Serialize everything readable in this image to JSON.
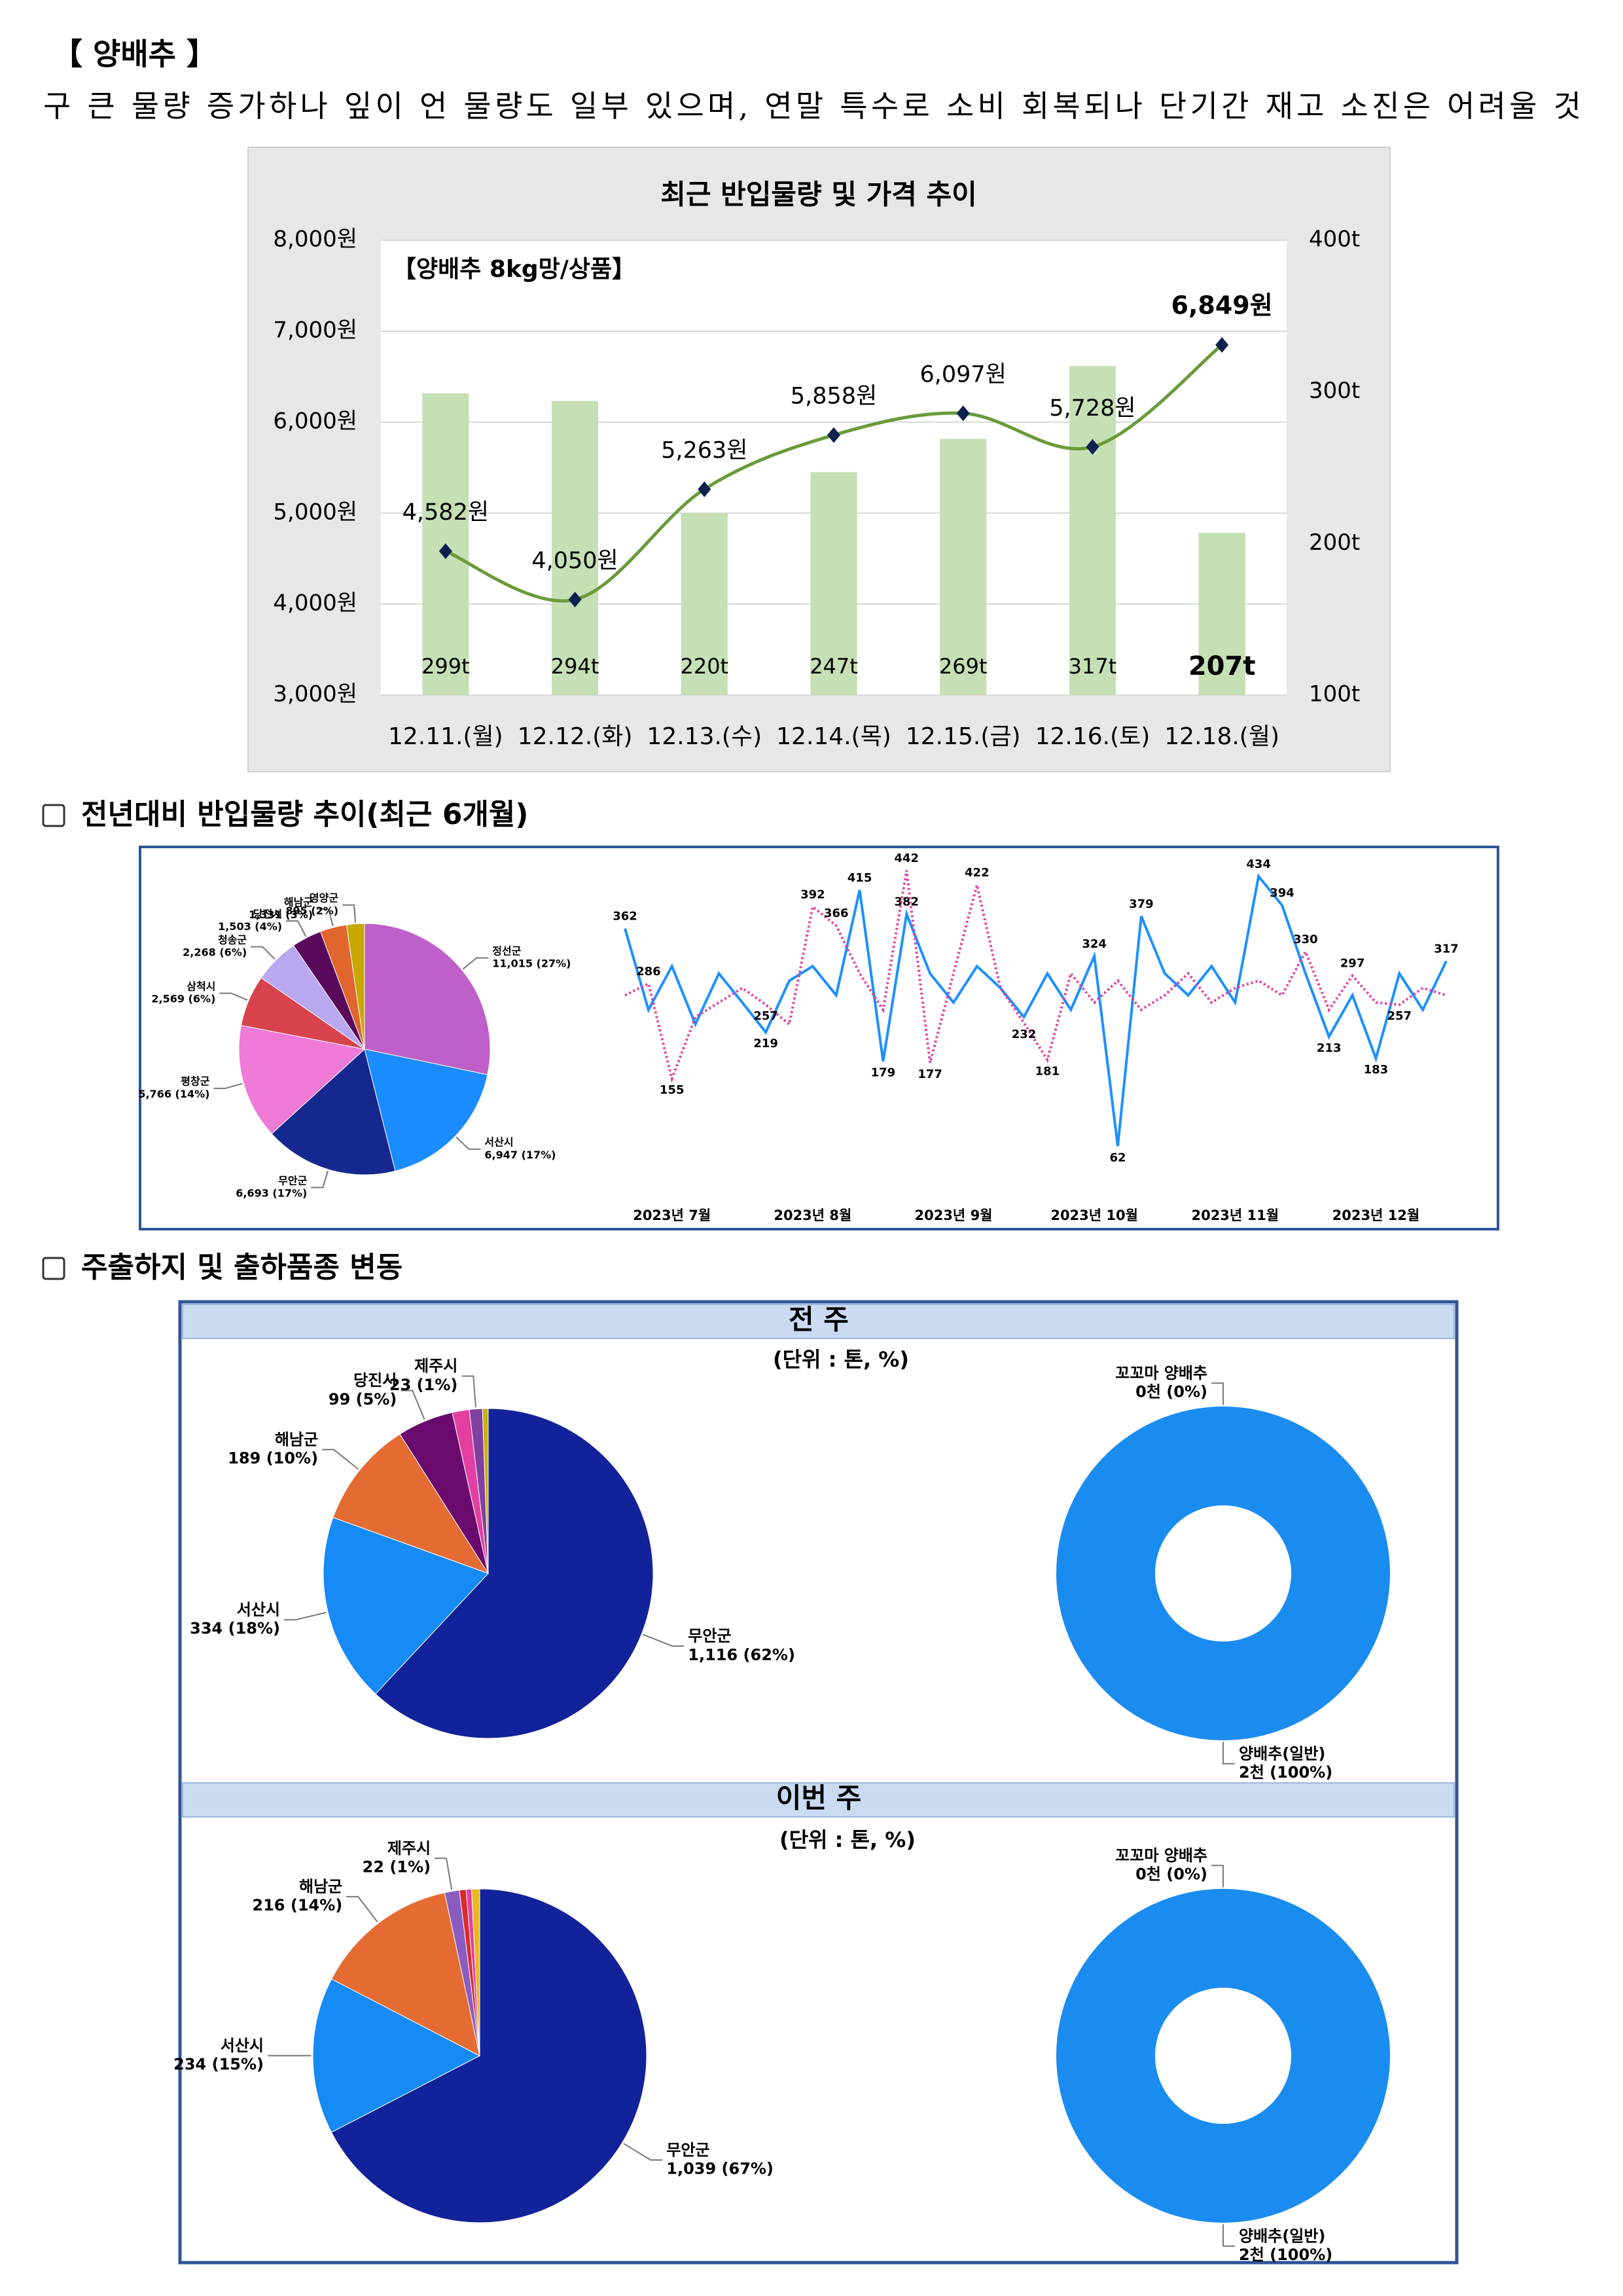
{
  "header": {
    "title": "【 양배추 】",
    "summary": "구 큰 물량 증가하나 잎이 언 물량도 일부 있으며, 연말 특수로 소비 회복되나 단기간 재고 소진은 어려울 것"
  },
  "sections": [
    {
      "title": "전년대비 반입물량 추이(최근 6개월)"
    },
    {
      "title": "주출하지 및 출하품종 변동"
    }
  ],
  "panels": [
    {
      "header": "전 주",
      "unit": "(단위 : 톤, %)"
    },
    {
      "header": "이번 주",
      "unit": "(단위 : 톤, %)"
    }
  ],
  "chart_data": [
    {
      "type": "bar",
      "title": "최근 반입물량 및 가격 추이",
      "annotation": "【양배추 8kg망/상품】",
      "categories": [
        "12.11.(월)",
        "12.12.(화)",
        "12.13.(수)",
        "12.14.(목)",
        "12.15.(금)",
        "12.16.(토)",
        "12.18.(월)"
      ],
      "series": [
        {
          "type": "bar",
          "axis": "y2",
          "color": "#c5e0b4",
          "values": [
            299,
            294,
            220,
            247,
            269,
            317,
            207
          ],
          "value_labels": [
            "299t",
            "294t",
            "220t",
            "247t",
            "269t",
            "317t",
            "207t"
          ]
        },
        {
          "type": "line",
          "color": "#6a9a3a",
          "marker_color": "#0d2150",
          "values": [
            4582,
            4050,
            5263,
            5858,
            6097,
            5728,
            6849
          ],
          "value_labels": [
            "4,582원",
            "4,050원",
            "5,263원",
            "5,858원",
            "6,097원",
            "5,728원",
            "6,849원"
          ]
        }
      ],
      "ylim": [
        3000,
        8000
      ],
      "yticks": [
        {
          "value": 3000,
          "label": "3,000원"
        },
        {
          "value": 4000,
          "label": "4,000원"
        },
        {
          "value": 5000,
          "label": "5,000원"
        },
        {
          "value": 6000,
          "label": "6,000원"
        },
        {
          "value": 7000,
          "label": "7,000원"
        },
        {
          "value": 8000,
          "label": "8,000원"
        }
      ],
      "y2lim": [
        100,
        400
      ],
      "y2ticks": [
        {
          "value": 100,
          "label": "100t"
        },
        {
          "value": 200,
          "label": "200t"
        },
        {
          "value": 300,
          "label": "300t"
        },
        {
          "value": 400,
          "label": "400t"
        }
      ],
      "grid": true
    },
    {
      "type": "pie",
      "categories": [
        "정선군",
        "서산시",
        "무안군",
        "평창군",
        "삼척시",
        "청송군",
        "당진시",
        "해남군",
        "영양군"
      ],
      "values": [
        11015,
        6947,
        6693,
        5766,
        2569,
        2268,
        1503,
        1331,
        895
      ],
      "value_labels": [
        "11,015 (27%)",
        "6,947 (17%)",
        "6,693 (17%)",
        "5,766 (14%)",
        "2,569 (6%)",
        "2,268 (6%)",
        "1,503 (4%)",
        "1,331 (3%)",
        "895 (2%)"
      ],
      "colors": [
        "#bf5fc9",
        "#1a8cff",
        "#14288f",
        "#f07ad8",
        "#d9434d",
        "#b9a8f0",
        "#5a0a5a",
        "#e0662e",
        "#c8a800"
      ]
    },
    {
      "type": "line",
      "categories": [
        null,
        null,
        "2023년 7월",
        null,
        null,
        null,
        null,
        null,
        "2023년 8월",
        null,
        null,
        null,
        null,
        null,
        "2023년 9월",
        null,
        null,
        null,
        null,
        null,
        "2023년 10월",
        null,
        null,
        null,
        null,
        null,
        "2023년 11월",
        null,
        null,
        null,
        null,
        null,
        "2023년 12월",
        null,
        null,
        null
      ],
      "ylim": [
        0,
        460
      ],
      "series": [
        {
          "color": "#1e90ff",
          "style": "solid",
          "values": [
            362,
            250,
            310,
            230,
            300,
            260,
            219,
            290,
            310,
            270,
            415,
            179,
            382,
            300,
            260,
            310,
            280,
            240,
            300,
            250,
            324,
            62,
            379,
            300,
            270,
            310,
            260,
            434,
            394,
            300,
            213,
            270,
            183,
            300,
            250,
            317
          ],
          "value_labels": [
            "362",
            null,
            null,
            null,
            null,
            null,
            "219",
            null,
            null,
            null,
            "415",
            "179",
            "382",
            null,
            null,
            null,
            null,
            null,
            null,
            null,
            "324",
            "62",
            "379",
            null,
            null,
            null,
            null,
            "434",
            "394",
            null,
            "213",
            null,
            "183",
            null,
            null,
            "317"
          ]
        },
        {
          "color": "#e040a0",
          "style": "dotted",
          "values": [
            270,
            286,
            155,
            240,
            260,
            280,
            257,
            230,
            392,
            366,
            300,
            250,
            442,
            177,
            300,
            422,
            280,
            232,
            181,
            300,
            260,
            290,
            250,
            270,
            300,
            260,
            280,
            290,
            270,
            330,
            250,
            297,
            260,
            257,
            280,
            270
          ],
          "value_labels": [
            null,
            "286",
            "155",
            null,
            null,
            null,
            "257",
            null,
            "392",
            "366",
            null,
            null,
            "442",
            "177",
            null,
            "422",
            null,
            "232",
            "181",
            null,
            null,
            null,
            null,
            null,
            null,
            null,
            null,
            null,
            null,
            "330",
            null,
            "297",
            null,
            "257",
            null,
            null
          ]
        }
      ]
    },
    {
      "type": "pie",
      "categories": [
        "무안군",
        "서산시",
        "해남군",
        "당진시",
        null,
        "제주시",
        null
      ],
      "values": [
        1116,
        334,
        189,
        99,
        30,
        23,
        10
      ],
      "value_labels": [
        "1,116 (62%)",
        "334 (18%)",
        "189 (10%)",
        "99 (5%)",
        null,
        "23 (1%)",
        null
      ],
      "colors": [
        "#12229a",
        "#168af5",
        "#e46c33",
        "#6a0a6e",
        "#e33fa0",
        "#8040a0",
        "#c8b400"
      ]
    },
    {
      "type": "donut",
      "categories": [
        "꼬꼬마 양배추",
        "양배추(일반)"
      ],
      "values": [
        0,
        2
      ],
      "value_labels": [
        "0천 (0%)",
        "2천 (100%)"
      ],
      "colors": [
        "#0d2a6e",
        "#1a8cf0"
      ]
    },
    {
      "type": "pie",
      "categories": [
        "무안군",
        "서산시",
        "해남군",
        "제주시",
        null,
        null,
        null
      ],
      "values": [
        1039,
        234,
        216,
        22,
        10,
        8,
        12
      ],
      "value_labels": [
        "1,039 (67%)",
        "234 (15%)",
        "216 (14%)",
        "22 (1%)",
        null,
        null,
        null
      ],
      "colors": [
        "#12229a",
        "#168af5",
        "#e46c33",
        "#8a5cc0",
        "#d92b2b",
        "#e33fa0",
        "#e8b820"
      ]
    },
    {
      "type": "donut",
      "categories": [
        "꼬꼬마 양배추",
        "양배추(일반)"
      ],
      "values": [
        0,
        2
      ],
      "value_labels": [
        "0천 (0%)",
        "2천 (100%)"
      ],
      "colors": [
        "#0d2a6e",
        "#1a8cf0"
      ]
    }
  ]
}
